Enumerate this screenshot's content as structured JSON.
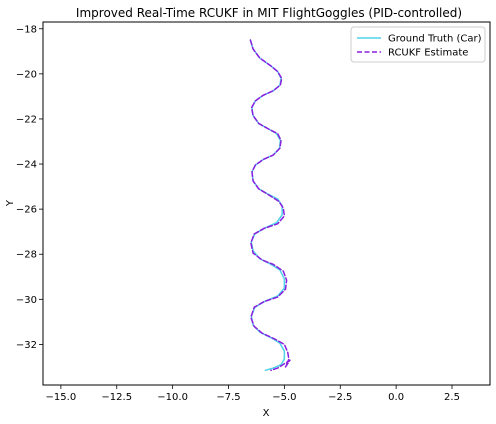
{
  "chart_data": {
    "type": "line",
    "title": "Improved Real-Time RCUKF in MIT FlightGoggles (PID-controlled)",
    "xlabel": "X",
    "ylabel": "Y",
    "xlim": [
      -15.8,
      4.2
    ],
    "ylim": [
      -33.8,
      -17.7
    ],
    "xticks": [
      -15.0,
      -12.5,
      -10.0,
      -7.5,
      -5.0,
      -2.5,
      0.0,
      2.5
    ],
    "xtick_labels": [
      "−15.0",
      "−12.5",
      "−10.0",
      "−7.5",
      "−5.0",
      "−2.5",
      "0.0",
      "2.5"
    ],
    "yticks": [
      -32,
      -30,
      -28,
      -26,
      -24,
      -22,
      -20,
      -18
    ],
    "ytick_labels": [
      "−32",
      "−30",
      "−28",
      "−26",
      "−24",
      "−22",
      "−20",
      "−18"
    ],
    "grid": false,
    "legend_position": "top-right",
    "series": [
      {
        "name": "Ground Truth (Car)",
        "color": "#4fd3e8",
        "style": "solid",
        "x": [
          -6.52,
          -6.4,
          -6.1,
          -5.6,
          -5.3,
          -5.15,
          -5.2,
          -5.5,
          -5.95,
          -6.3,
          -6.45,
          -6.4,
          -6.15,
          -5.7,
          -5.35,
          -5.18,
          -5.22,
          -5.5,
          -5.95,
          -6.3,
          -6.45,
          -6.4,
          -6.15,
          -5.7,
          -5.3,
          -5.1,
          -5.1,
          -5.35,
          -5.9,
          -6.32,
          -6.48,
          -6.4,
          -6.1,
          -5.6,
          -5.2,
          -5.0,
          -5.0,
          -5.3,
          -5.9,
          -6.32,
          -6.48,
          -6.4,
          -6.1,
          -5.6,
          -5.2,
          -5.0,
          -5.0,
          -5.15,
          -5.5,
          -5.85
        ],
        "y": [
          -18.5,
          -18.9,
          -19.3,
          -19.65,
          -19.9,
          -20.2,
          -20.5,
          -20.75,
          -20.95,
          -21.2,
          -21.5,
          -21.85,
          -22.2,
          -22.45,
          -22.65,
          -22.95,
          -23.3,
          -23.6,
          -23.8,
          -24.05,
          -24.35,
          -24.75,
          -25.1,
          -25.35,
          -25.55,
          -25.85,
          -26.25,
          -26.6,
          -26.85,
          -27.1,
          -27.45,
          -27.85,
          -28.2,
          -28.45,
          -28.7,
          -29.1,
          -29.5,
          -29.85,
          -30.1,
          -30.35,
          -30.75,
          -31.15,
          -31.45,
          -31.7,
          -31.95,
          -32.3,
          -32.65,
          -32.9,
          -33.05,
          -33.15
        ]
      },
      {
        "name": "RCUKF Estimate",
        "color": "#8a1fe0",
        "style": "dashed",
        "x": [
          -6.52,
          -6.4,
          -6.1,
          -5.6,
          -5.3,
          -5.12,
          -5.18,
          -5.5,
          -5.95,
          -6.3,
          -6.47,
          -6.4,
          -6.15,
          -5.7,
          -5.3,
          -5.15,
          -5.2,
          -5.5,
          -5.95,
          -6.3,
          -6.45,
          -6.4,
          -6.15,
          -5.65,
          -5.25,
          -5.05,
          -5.0,
          -5.3,
          -5.9,
          -6.35,
          -6.5,
          -6.4,
          -6.0,
          -5.5,
          -5.05,
          -4.9,
          -4.95,
          -5.3,
          -5.9,
          -6.35,
          -6.5,
          -6.35,
          -6.0,
          -5.45,
          -5.0,
          -4.85,
          -4.8,
          -4.95,
          -4.75,
          -5.3,
          -5.6
        ],
        "y": [
          -18.5,
          -18.9,
          -19.3,
          -19.65,
          -19.9,
          -20.2,
          -20.5,
          -20.75,
          -20.95,
          -21.2,
          -21.5,
          -21.85,
          -22.2,
          -22.45,
          -22.65,
          -22.95,
          -23.3,
          -23.6,
          -23.8,
          -24.05,
          -24.35,
          -24.75,
          -25.1,
          -25.4,
          -25.65,
          -25.95,
          -26.3,
          -26.65,
          -26.85,
          -27.1,
          -27.5,
          -27.95,
          -28.25,
          -28.45,
          -28.75,
          -29.15,
          -29.55,
          -29.9,
          -30.1,
          -30.35,
          -30.8,
          -31.2,
          -31.5,
          -31.75,
          -32.0,
          -32.35,
          -32.65,
          -33.0,
          -32.7,
          -33.05,
          -33.15
        ]
      }
    ]
  }
}
